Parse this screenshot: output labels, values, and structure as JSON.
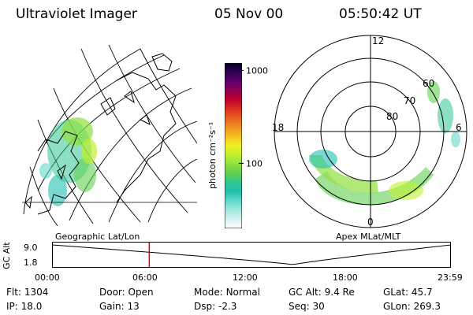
{
  "header": {
    "title": "Ultraviolet Imager",
    "date": "05 Nov 00",
    "time": "05:50:42 UT"
  },
  "colorbar": {
    "unit": "photon cm⁻²s⁻¹",
    "tick_labels": [
      "1000",
      "100"
    ],
    "tick_values": [
      1000,
      100
    ],
    "range": [
      20,
      1200
    ],
    "colors": [
      "#ffffff",
      "#d8f0f0",
      "#a0e8e0",
      "#60d8c8",
      "#20c0b0",
      "#30c890",
      "#60d050",
      "#90e040",
      "#c0f030",
      "#f0f020",
      "#f8c020",
      "#f09020",
      "#e86020",
      "#d83020",
      "#c00030",
      "#900050",
      "#600070",
      "#300050",
      "#000020"
    ]
  },
  "geo_panel": {
    "label": "Geographic Lat/Lon"
  },
  "polar_panel": {
    "label": "Apex MLat/MLT",
    "mlt_labels": [
      "12",
      "18",
      "0",
      "6"
    ],
    "lat_labels": [
      "60",
      "70",
      "80"
    ]
  },
  "altitude_plot": {
    "ylabel": "GC Alt",
    "y_ticks": [
      "9.0",
      "1.8"
    ],
    "x_ticks": [
      "00:00",
      "06:00",
      "12:00",
      "18:00",
      "23:59"
    ],
    "current_time_hours": 5.85,
    "colors": {
      "marker": "#e00000",
      "curve": "#000000"
    }
  },
  "info": {
    "row1": [
      {
        "label": "Flt:",
        "value": "1304"
      },
      {
        "label": "Door:",
        "value": "Open"
      },
      {
        "label": "Mode:",
        "value": "Normal"
      },
      {
        "label": "GC Alt:",
        "value": "9.4 Re"
      },
      {
        "label": "GLat:",
        "value": "45.7"
      }
    ],
    "row2": [
      {
        "label": "IP:",
        "value": "18.0"
      },
      {
        "label": "Gain:",
        "value": "13"
      },
      {
        "label": "Dsp:",
        "value": "-2.3"
      },
      {
        "label": "Seq:",
        "value": "30"
      },
      {
        "label": "GLon:",
        "value": "269.3"
      }
    ]
  }
}
